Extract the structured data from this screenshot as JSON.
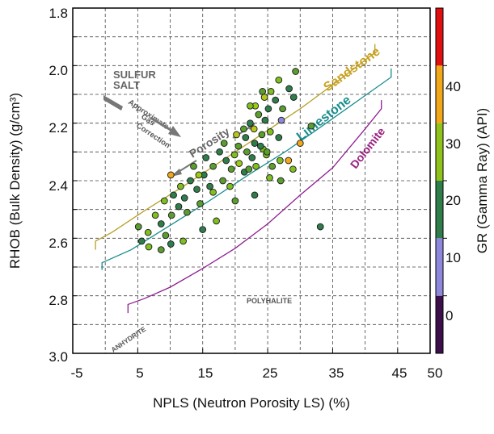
{
  "chart_data": {
    "type": "scatter",
    "title": "",
    "xlabel": "NPLS (Neutron Porosity LS) (%)",
    "ylabel": "RHOB (Bulk Density) (g/cm³)",
    "colorbar_label": "GR (Gamma Ray) (API)",
    "xlim": [
      -5,
      50
    ],
    "ylim": [
      3.0,
      1.8
    ],
    "y_inverted": true,
    "grid": true,
    "grid_style": "dashed",
    "x_ticks": [
      "-5",
      "5",
      "15",
      "25",
      "35",
      "45",
      "50"
    ],
    "y_ticks": [
      "1.8",
      "2.0",
      "2.2",
      "2.4",
      "2.6",
      "2.8",
      "3.0"
    ],
    "colorbar_ticks": [
      "0",
      "10",
      "20",
      "30",
      "40"
    ],
    "colorbar_range": [
      -10,
      50
    ],
    "colorbar_colors": [
      "#3d0f4a",
      "#8e88dc",
      "#2f7d4a",
      "#8fc21a",
      "#f2a818",
      "#e01010"
    ],
    "lithology_lines": [
      {
        "name": "Sandstone",
        "color": "#b8a02a",
        "x": [
          -1.5,
          -1.5,
          1,
          6,
          12,
          18,
          24,
          30,
          36,
          41.5,
          41.5
        ],
        "y": [
          2.64,
          2.61,
          2.58,
          2.505,
          2.42,
          2.33,
          2.24,
          2.15,
          2.05,
          1.955,
          1.925
        ]
      },
      {
        "name": "Limestone",
        "color": "#1a8c8c",
        "x": [
          -0.5,
          -0.5,
          4,
          10,
          16,
          22,
          28,
          34,
          39,
          44,
          44
        ],
        "y": [
          2.71,
          2.685,
          2.64,
          2.555,
          2.47,
          2.38,
          2.295,
          2.2,
          2.12,
          2.04,
          2.01
        ]
      },
      {
        "name": "Dolomite",
        "color": "#8e2090",
        "x": [
          3.5,
          3.5,
          6,
          10,
          15,
          20,
          25,
          30,
          35,
          40,
          42.5,
          42.5
        ],
        "y": [
          2.86,
          2.83,
          2.81,
          2.77,
          2.705,
          2.635,
          2.55,
          2.45,
          2.355,
          2.22,
          2.15,
          2.12
        ]
      }
    ],
    "annotations": {
      "sandstone": "Sandstone",
      "limestone": "Limestone",
      "dolomite": "Dolomite",
      "sulfur": "SULFUR",
      "salt": "SALT",
      "gas_correction": [
        "Approximate",
        "Gas",
        "Correction"
      ],
      "porosity": "Porosity",
      "polyhalite": "POLYHALITE",
      "anhydrite": "ANHYDRITE"
    },
    "points": [
      [
        24.2,
        2.09,
        14
      ],
      [
        25.5,
        2.09,
        18
      ],
      [
        26.2,
        2.12,
        12
      ],
      [
        25.1,
        2.15,
        10
      ],
      [
        23.1,
        2.14,
        24
      ],
      [
        23.6,
        2.17,
        16
      ],
      [
        24.6,
        2.19,
        12
      ],
      [
        27.1,
        2.19,
        8
      ],
      [
        22.3,
        2.2,
        12
      ],
      [
        22.9,
        2.22,
        25
      ],
      [
        24.1,
        2.24,
        14
      ],
      [
        25.4,
        2.23,
        18
      ],
      [
        21.6,
        2.25,
        10
      ],
      [
        23.0,
        2.27,
        12
      ],
      [
        20.5,
        2.28,
        14
      ],
      [
        21.8,
        2.3,
        16
      ],
      [
        24.3,
        2.29,
        20
      ],
      [
        19.9,
        2.31,
        18
      ],
      [
        22.6,
        2.32,
        12
      ],
      [
        24.8,
        2.31,
        18
      ],
      [
        18.6,
        2.33,
        12
      ],
      [
        20.6,
        2.34,
        22
      ],
      [
        16.6,
        2.35,
        16
      ],
      [
        21.4,
        2.37,
        12
      ],
      [
        15.2,
        2.38,
        10
      ],
      [
        18.1,
        2.4,
        14
      ],
      [
        13.1,
        2.4,
        12
      ],
      [
        19.2,
        2.42,
        20
      ],
      [
        14.1,
        2.43,
        12
      ],
      [
        16.6,
        2.44,
        18
      ],
      [
        10.5,
        2.45,
        10
      ],
      [
        12.2,
        2.46,
        12
      ],
      [
        9.1,
        2.47,
        18
      ],
      [
        14.6,
        2.48,
        16
      ],
      [
        11.3,
        2.49,
        12
      ],
      [
        7.7,
        2.52,
        20
      ],
      [
        10.2,
        2.52,
        14
      ],
      [
        8.6,
        2.55,
        12
      ],
      [
        5.1,
        2.56,
        16
      ],
      [
        6.6,
        2.58,
        20
      ],
      [
        9.3,
        2.59,
        14
      ],
      [
        5.6,
        2.61,
        12
      ],
      [
        6.7,
        2.63,
        18
      ],
      [
        8.6,
        2.64,
        16
      ],
      [
        10.1,
        2.62,
        12
      ],
      [
        12.0,
        2.61,
        20
      ],
      [
        15.0,
        2.57,
        12
      ],
      [
        17.1,
        2.54,
        18
      ],
      [
        20.0,
        2.47,
        16
      ],
      [
        23.0,
        2.45,
        10
      ],
      [
        27.0,
        2.4,
        14
      ],
      [
        28.9,
        2.36,
        20
      ],
      [
        30.0,
        2.27,
        33
      ],
      [
        26.7,
        2.05,
        20
      ],
      [
        29.3,
        2.02,
        16
      ],
      [
        22.3,
        2.14,
        18
      ],
      [
        24.9,
        2.3,
        16
      ],
      [
        26.9,
        2.33,
        20
      ],
      [
        24.5,
        2.11,
        26
      ],
      [
        18.3,
        2.27,
        14
      ],
      [
        15.5,
        2.32,
        12
      ],
      [
        11.6,
        2.42,
        20
      ],
      [
        21.3,
        2.22,
        14
      ],
      [
        26.7,
        2.25,
        12
      ],
      [
        28.2,
        2.33,
        30
      ],
      [
        13.6,
        2.35,
        16
      ],
      [
        20.2,
        2.24,
        26
      ],
      [
        17.6,
        2.3,
        12
      ],
      [
        23.9,
        2.28,
        12
      ],
      [
        25.3,
        2.39,
        18
      ],
      [
        12.6,
        2.51,
        14
      ],
      [
        14.4,
        2.38,
        22
      ],
      [
        10.1,
        2.38,
        32
      ],
      [
        16.1,
        2.42,
        10
      ],
      [
        19.4,
        2.36,
        16
      ],
      [
        22.1,
        2.36,
        14
      ],
      [
        27.3,
        2.15,
        14
      ],
      [
        28.3,
        2.08,
        12
      ],
      [
        29.0,
        2.11,
        10
      ],
      [
        23.2,
        2.35,
        20
      ],
      [
        25.7,
        2.35,
        16
      ],
      [
        31.7,
        2.21,
        14
      ],
      [
        33.1,
        2.56,
        12
      ]
    ]
  }
}
